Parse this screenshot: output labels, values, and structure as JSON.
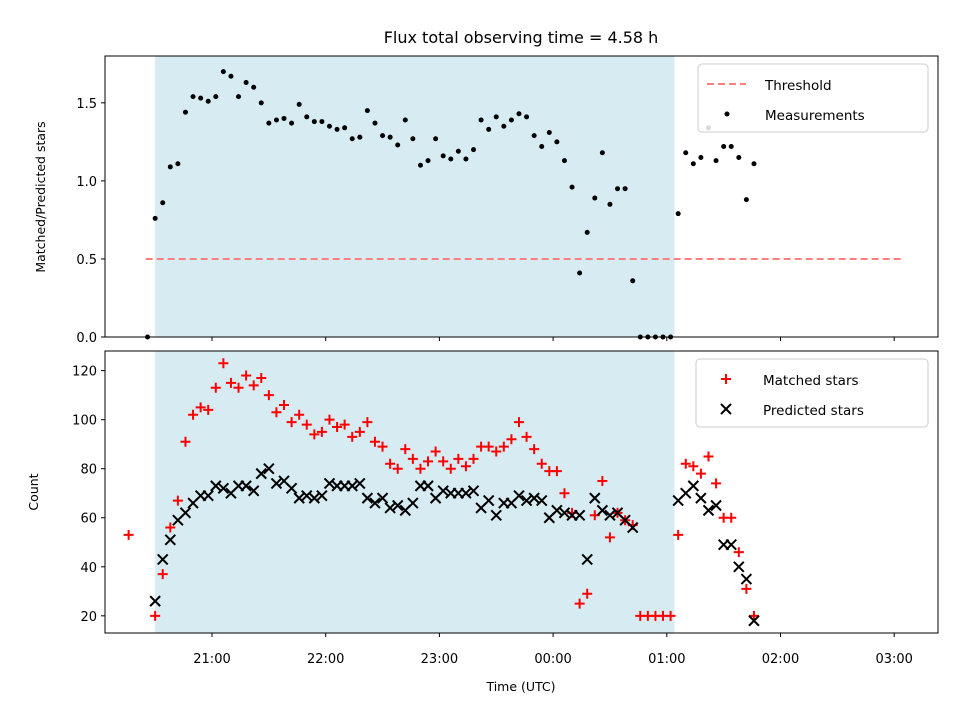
{
  "figure": {
    "title": "Flux total observing time = 4.58 h",
    "xlabel": "Time (UTC)",
    "xticks": [
      "21:00",
      "22:00",
      "23:00",
      "00:00",
      "01:00",
      "02:00",
      "03:00"
    ]
  },
  "chart_data": [
    {
      "type": "scatter",
      "ylabel": "Matched/Predicted stars",
      "ylim": [
        0,
        1.8
      ],
      "yticks": [
        "0.0",
        "0.5",
        "1.0",
        "1.5"
      ],
      "shaded_span": {
        "start": "20:30",
        "end": "01:04"
      },
      "legend": {
        "placement": "top-right",
        "threshold_label": "Threshold",
        "measurements_label": "Measurements"
      },
      "threshold": {
        "name": "Threshold",
        "value": 0.5,
        "color": "#ff7f7f",
        "x_range": [
          "20:25",
          "03:05"
        ]
      },
      "series": [
        {
          "name": "Measurements",
          "color": "#000000",
          "points": [
            [
              "20:26",
              0.0
            ],
            [
              "20:30",
              0.76
            ],
            [
              "20:34",
              0.86
            ],
            [
              "20:38",
              1.09
            ],
            [
              "20:42",
              1.11
            ],
            [
              "20:46",
              1.44
            ],
            [
              "20:50",
              1.54
            ],
            [
              "20:54",
              1.53
            ],
            [
              "20:58",
              1.51
            ],
            [
              "21:02",
              1.54
            ],
            [
              "21:06",
              1.7
            ],
            [
              "21:10",
              1.67
            ],
            [
              "21:14",
              1.54
            ],
            [
              "21:18",
              1.63
            ],
            [
              "21:22",
              1.6
            ],
            [
              "21:26",
              1.5
            ],
            [
              "21:30",
              1.37
            ],
            [
              "21:34",
              1.39
            ],
            [
              "21:38",
              1.4
            ],
            [
              "21:42",
              1.37
            ],
            [
              "21:46",
              1.49
            ],
            [
              "21:50",
              1.41
            ],
            [
              "21:54",
              1.38
            ],
            [
              "21:58",
              1.38
            ],
            [
              "22:02",
              1.35
            ],
            [
              "22:06",
              1.33
            ],
            [
              "22:10",
              1.34
            ],
            [
              "22:14",
              1.27
            ],
            [
              "22:18",
              1.28
            ],
            [
              "22:22",
              1.45
            ],
            [
              "22:26",
              1.37
            ],
            [
              "22:30",
              1.29
            ],
            [
              "22:34",
              1.28
            ],
            [
              "22:38",
              1.23
            ],
            [
              "22:42",
              1.39
            ],
            [
              "22:46",
              1.27
            ],
            [
              "22:50",
              1.1
            ],
            [
              "22:54",
              1.13
            ],
            [
              "22:58",
              1.27
            ],
            [
              "23:02",
              1.16
            ],
            [
              "23:06",
              1.14
            ],
            [
              "23:10",
              1.19
            ],
            [
              "23:14",
              1.14
            ],
            [
              "23:18",
              1.2
            ],
            [
              "23:22",
              1.39
            ],
            [
              "23:26",
              1.33
            ],
            [
              "23:30",
              1.41
            ],
            [
              "23:34",
              1.35
            ],
            [
              "23:38",
              1.39
            ],
            [
              "23:42",
              1.43
            ],
            [
              "23:46",
              1.41
            ],
            [
              "23:50",
              1.29
            ],
            [
              "23:54",
              1.22
            ],
            [
              "23:58",
              1.31
            ],
            [
              "00:02",
              1.25
            ],
            [
              "00:06",
              1.13
            ],
            [
              "00:10",
              0.96
            ],
            [
              "00:14",
              0.41
            ],
            [
              "00:18",
              0.67
            ],
            [
              "00:22",
              0.89
            ],
            [
              "00:26",
              1.18
            ],
            [
              "00:30",
              0.85
            ],
            [
              "00:34",
              0.95
            ],
            [
              "00:38",
              0.95
            ],
            [
              "00:42",
              0.36
            ],
            [
              "00:46",
              0.0
            ],
            [
              "00:50",
              0.0
            ],
            [
              "00:54",
              0.0
            ],
            [
              "00:58",
              0.0
            ],
            [
              "01:02",
              0.0
            ],
            [
              "01:06",
              0.79
            ],
            [
              "01:10",
              1.18
            ],
            [
              "01:14",
              1.11
            ],
            [
              "01:18",
              1.15
            ],
            [
              "01:22",
              1.34
            ],
            [
              "01:26",
              1.13
            ],
            [
              "01:30",
              1.22
            ],
            [
              "01:34",
              1.22
            ],
            [
              "01:38",
              1.15
            ],
            [
              "01:42",
              0.88
            ],
            [
              "01:46",
              1.11
            ]
          ]
        }
      ]
    },
    {
      "type": "scatter",
      "ylabel": "Count",
      "ylim": [
        13,
        128
      ],
      "yticks": [
        "20",
        "40",
        "60",
        "80",
        "100",
        "120"
      ],
      "shaded_span": {
        "start": "20:30",
        "end": "01:04"
      },
      "legend": {
        "placement": "top-right"
      },
      "series": [
        {
          "name": "Matched stars",
          "marker": "plus",
          "color": "#ff0000",
          "points": [
            [
              "20:16",
              53
            ],
            [
              "20:30",
              20
            ],
            [
              "20:34",
              37
            ],
            [
              "20:38",
              56
            ],
            [
              "20:42",
              67
            ],
            [
              "20:46",
              91
            ],
            [
              "20:50",
              102
            ],
            [
              "20:54",
              105
            ],
            [
              "20:58",
              104
            ],
            [
              "21:02",
              113
            ],
            [
              "21:06",
              123
            ],
            [
              "21:10",
              115
            ],
            [
              "21:14",
              113
            ],
            [
              "21:18",
              118
            ],
            [
              "21:22",
              114
            ],
            [
              "21:26",
              117
            ],
            [
              "21:30",
              110
            ],
            [
              "21:34",
              103
            ],
            [
              "21:38",
              106
            ],
            [
              "21:42",
              99
            ],
            [
              "21:46",
              102
            ],
            [
              "21:50",
              98
            ],
            [
              "21:54",
              94
            ],
            [
              "21:58",
              95
            ],
            [
              "22:02",
              100
            ],
            [
              "22:06",
              97
            ],
            [
              "22:10",
              98
            ],
            [
              "22:14",
              93
            ],
            [
              "22:18",
              95
            ],
            [
              "22:22",
              99
            ],
            [
              "22:26",
              91
            ],
            [
              "22:30",
              89
            ],
            [
              "22:34",
              82
            ],
            [
              "22:38",
              80
            ],
            [
              "22:42",
              88
            ],
            [
              "22:46",
              84
            ],
            [
              "22:50",
              80
            ],
            [
              "22:54",
              83
            ],
            [
              "22:58",
              87
            ],
            [
              "23:02",
              83
            ],
            [
              "23:06",
              80
            ],
            [
              "23:10",
              84
            ],
            [
              "23:14",
              81
            ],
            [
              "23:18",
              84
            ],
            [
              "23:22",
              89
            ],
            [
              "23:26",
              89
            ],
            [
              "23:30",
              87
            ],
            [
              "23:34",
              89
            ],
            [
              "23:38",
              92
            ],
            [
              "23:42",
              99
            ],
            [
              "23:46",
              93
            ],
            [
              "23:50",
              88
            ],
            [
              "23:54",
              82
            ],
            [
              "23:58",
              79
            ],
            [
              "00:02",
              79
            ],
            [
              "00:06",
              70
            ],
            [
              "00:10",
              62
            ],
            [
              "00:14",
              25
            ],
            [
              "00:18",
              29
            ],
            [
              "00:22",
              61
            ],
            [
              "00:26",
              75
            ],
            [
              "00:30",
              52
            ],
            [
              "00:34",
              62
            ],
            [
              "00:38",
              59
            ],
            [
              "00:42",
              57
            ],
            [
              "00:46",
              20
            ],
            [
              "00:50",
              20
            ],
            [
              "00:54",
              20
            ],
            [
              "00:58",
              20
            ],
            [
              "01:02",
              20
            ],
            [
              "01:06",
              53
            ],
            [
              "01:10",
              82
            ],
            [
              "01:14",
              81
            ],
            [
              "01:18",
              78
            ],
            [
              "01:22",
              85
            ],
            [
              "01:26",
              74
            ],
            [
              "01:30",
              60
            ],
            [
              "01:34",
              60
            ],
            [
              "01:38",
              46
            ],
            [
              "01:42",
              31
            ],
            [
              "01:46",
              20
            ]
          ]
        },
        {
          "name": "Predicted stars",
          "marker": "x",
          "color": "#000000",
          "points": [
            [
              "20:30",
              26
            ],
            [
              "20:34",
              43
            ],
            [
              "20:38",
              51
            ],
            [
              "20:42",
              59
            ],
            [
              "20:46",
              62
            ],
            [
              "20:50",
              66
            ],
            [
              "20:54",
              69
            ],
            [
              "20:58",
              69
            ],
            [
              "21:02",
              73
            ],
            [
              "21:06",
              72
            ],
            [
              "21:10",
              70
            ],
            [
              "21:14",
              73
            ],
            [
              "21:18",
              73
            ],
            [
              "21:22",
              71
            ],
            [
              "21:26",
              78
            ],
            [
              "21:30",
              80
            ],
            [
              "21:34",
              74
            ],
            [
              "21:38",
              75
            ],
            [
              "21:42",
              72
            ],
            [
              "21:46",
              68
            ],
            [
              "21:50",
              69
            ],
            [
              "21:54",
              68
            ],
            [
              "21:58",
              69
            ],
            [
              "22:02",
              74
            ],
            [
              "22:06",
              73
            ],
            [
              "22:10",
              73
            ],
            [
              "22:14",
              73
            ],
            [
              "22:18",
              74
            ],
            [
              "22:22",
              68
            ],
            [
              "22:26",
              66
            ],
            [
              "22:30",
              68
            ],
            [
              "22:34",
              64
            ],
            [
              "22:38",
              65
            ],
            [
              "22:42",
              63
            ],
            [
              "22:46",
              66
            ],
            [
              "22:50",
              73
            ],
            [
              "22:54",
              73
            ],
            [
              "22:58",
              68
            ],
            [
              "23:02",
              71
            ],
            [
              "23:06",
              70
            ],
            [
              "23:10",
              70
            ],
            [
              "23:14",
              70
            ],
            [
              "23:18",
              71
            ],
            [
              "23:22",
              64
            ],
            [
              "23:26",
              67
            ],
            [
              "23:30",
              61
            ],
            [
              "23:34",
              66
            ],
            [
              "23:38",
              66
            ],
            [
              "23:42",
              69
            ],
            [
              "23:46",
              67
            ],
            [
              "23:50",
              68
            ],
            [
              "23:54",
              67
            ],
            [
              "23:58",
              60
            ],
            [
              "00:02",
              63
            ],
            [
              "00:06",
              62
            ],
            [
              "00:10",
              61
            ],
            [
              "00:14",
              61
            ],
            [
              "00:18",
              43
            ],
            [
              "00:22",
              68
            ],
            [
              "00:26",
              63
            ],
            [
              "00:30",
              61
            ],
            [
              "00:34",
              62
            ],
            [
              "00:38",
              59
            ],
            [
              "00:42",
              56
            ],
            [
              "01:06",
              67
            ],
            [
              "01:10",
              70
            ],
            [
              "01:14",
              73
            ],
            [
              "01:18",
              68
            ],
            [
              "01:22",
              63
            ],
            [
              "01:26",
              65
            ],
            [
              "01:30",
              49
            ],
            [
              "01:34",
              49
            ],
            [
              "01:38",
              40
            ],
            [
              "01:42",
              35
            ],
            [
              "01:46",
              18
            ]
          ]
        }
      ]
    }
  ]
}
